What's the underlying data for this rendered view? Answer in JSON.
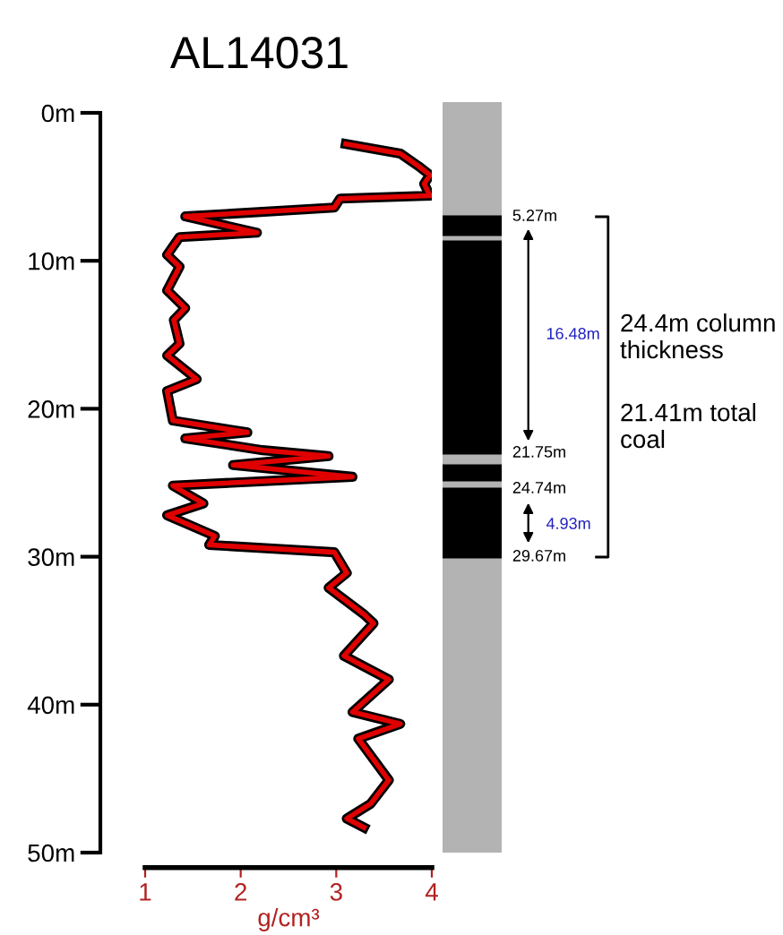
{
  "chart_data": [
    {
      "type": "line",
      "title": "AL14031",
      "xlabel": "g/cm³",
      "xlim": [
        1,
        4
      ],
      "xticks": [
        1,
        2,
        3,
        4
      ],
      "ylim": [
        50,
        0
      ],
      "yticks": [
        {
          "value": 0,
          "label": "0m"
        },
        {
          "value": 10,
          "label": "10m"
        },
        {
          "value": 20,
          "label": "20m"
        },
        {
          "value": 30,
          "label": "30m"
        },
        {
          "value": 40,
          "label": "40m"
        },
        {
          "value": 50,
          "label": "50m"
        }
      ],
      "grid": false,
      "legend": false,
      "marker": "none",
      "line_style": "solid",
      "orientation": "horizontal",
      "series": [
        {
          "color": "#e00000",
          "values": [
            3.1,
            3.67,
            3.86,
            3.98,
            3.92,
            3.98,
            3.04,
            2.98,
            1.42,
            2.17,
            1.36,
            1.23,
            1.36,
            1.23,
            1.42,
            1.3,
            1.36,
            1.23,
            1.54,
            1.23,
            1.29,
            2.07,
            1.42,
            2.23,
            2.92,
            1.92,
            3.17,
            1.29,
            1.61,
            1.23,
            1.73,
            1.67,
            2.98,
            3.11,
            2.92,
            3.29,
            3.39,
            3.08,
            3.55,
            3.17,
            3.67,
            3.23,
            3.55,
            3.36,
            3.11,
            3.29
          ],
          "x": [
            2.1,
            2.75,
            3.6,
            4.2,
            4.8,
            5.6,
            5.8,
            6.4,
            7.0,
            8.1,
            8.4,
            9.6,
            10.4,
            12.0,
            13.2,
            14.0,
            15.6,
            16.4,
            18.0,
            18.8,
            20.8,
            21.6,
            22.0,
            22.8,
            23.2,
            23.8,
            24.6,
            25.2,
            26.4,
            27.2,
            28.6,
            29.2,
            29.7,
            31.1,
            32.1,
            33.9,
            34.5,
            36.7,
            38.3,
            40.5,
            41.3,
            42.3,
            45.1,
            46.7,
            47.7,
            48.3
          ]
        }
      ]
    },
    {
      "type": "other",
      "annotations": [
        "5.27m",
        "21.75m",
        "24.74m",
        "29.67m",
        "16.48m",
        "4.93m",
        "24.4m column thickness",
        "21.41m total coal"
      ]
    }
  ]
}
